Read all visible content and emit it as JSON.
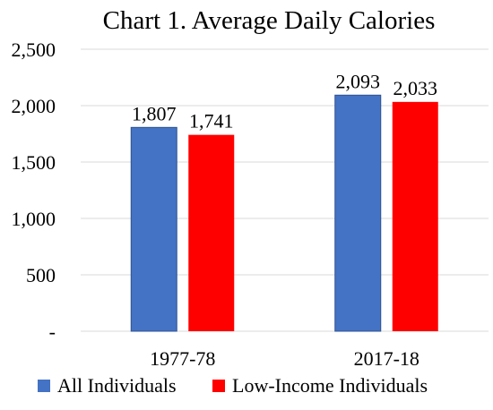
{
  "chart_data": {
    "type": "bar",
    "title": "Chart 1. Average Daily Calories",
    "categories": [
      "1977-78",
      "2017-18"
    ],
    "series": [
      {
        "name": "All Individuals",
        "values": [
          1807,
          2093
        ],
        "labels": [
          "1,807",
          "2,093"
        ],
        "color": "#4472C4"
      },
      {
        "name": "Low-Income Individuals",
        "values": [
          1741,
          2033
        ],
        "labels": [
          "1,741",
          "2,033"
        ],
        "color": "#FF0000"
      }
    ],
    "ylim": [
      0,
      2500
    ],
    "yticks": [
      0,
      500,
      1000,
      1500,
      2000,
      2500
    ],
    "ytick_labels": [
      "-",
      "500",
      "1,000",
      "1,500",
      "2,000",
      "2,500"
    ],
    "grid": true,
    "gridline_color": "#D9D9D9",
    "legend": "bottom"
  }
}
